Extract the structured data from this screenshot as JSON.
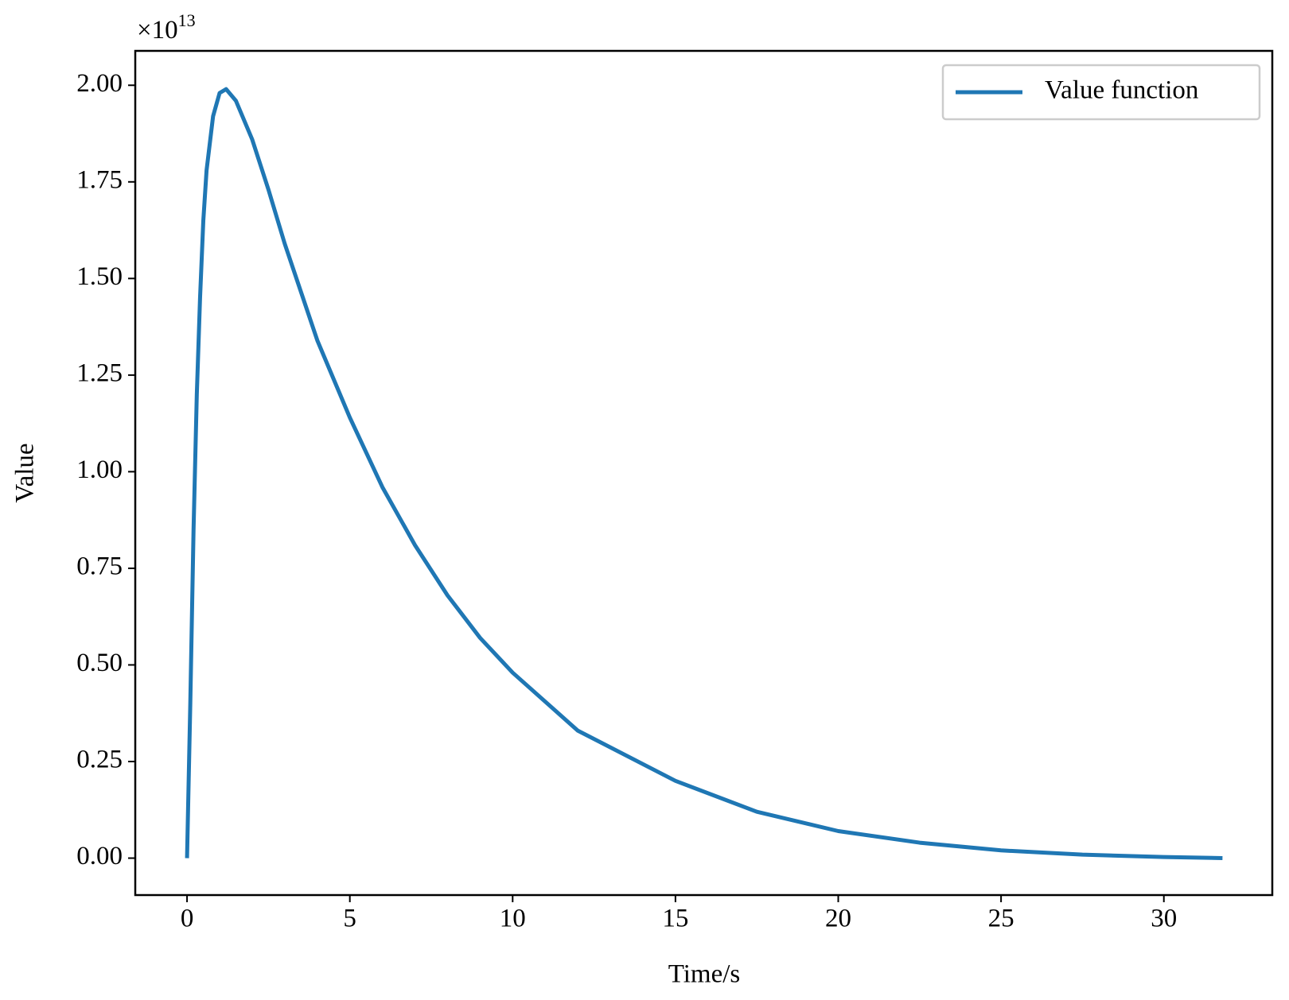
{
  "chart_data": {
    "type": "line",
    "x_label": "Time/s",
    "y_label": "Value",
    "y_offset_label": {
      "base": "×10",
      "exponent": "13"
    },
    "x": [
      0,
      0.1,
      0.2,
      0.3,
      0.4,
      0.5,
      0.6,
      0.8,
      1.0,
      1.2,
      1.5,
      2,
      2.5,
      3,
      4,
      5,
      6,
      7,
      8,
      9,
      10,
      12,
      15,
      17.5,
      20,
      22.5,
      25,
      27.5,
      30,
      31.8
    ],
    "series": [
      {
        "name": "Value function",
        "color": "#1f77b4",
        "values": [
          0,
          0.4,
          0.85,
          1.2,
          1.45,
          1.65,
          1.78,
          1.92,
          1.98,
          1.99,
          1.96,
          1.86,
          1.73,
          1.59,
          1.34,
          1.14,
          0.96,
          0.81,
          0.68,
          0.57,
          0.48,
          0.33,
          0.2,
          0.12,
          0.07,
          0.04,
          0.02,
          0.009,
          0.003,
          0
        ]
      }
    ],
    "xlim": [
      -1.59,
      33.33
    ],
    "ylim": [
      -0.0956,
      2.089
    ],
    "xticks": [
      0,
      5,
      10,
      15,
      20,
      25,
      30
    ],
    "yticks": [
      {
        "value": 0,
        "label": "0.00"
      },
      {
        "value": 0.25,
        "label": "0.25"
      },
      {
        "value": 0.5,
        "label": "0.50"
      },
      {
        "value": 0.75,
        "label": "0.75"
      },
      {
        "value": 1.0,
        "label": "1.00"
      },
      {
        "value": 1.25,
        "label": "1.25"
      },
      {
        "value": 1.5,
        "label": "1.50"
      },
      {
        "value": 1.75,
        "label": "1.75"
      },
      {
        "value": 2.0,
        "label": "2.00"
      }
    ],
    "legend": "upper right",
    "grid": false
  }
}
